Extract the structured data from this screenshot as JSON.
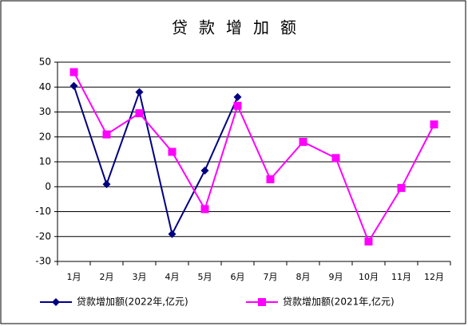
{
  "chart_data": {
    "type": "line",
    "title": "贷款增加额",
    "categories": [
      "1月",
      "2月",
      "3月",
      "4月",
      "5月",
      "6月",
      "7月",
      "8月",
      "9月",
      "10月",
      "11月",
      "12月"
    ],
    "series": [
      {
        "name": "贷款增加额(2022年,亿元)",
        "color": "#000080",
        "marker": "diamond",
        "values": [
          40.5,
          1,
          38,
          -19,
          6.5,
          36,
          null,
          null,
          null,
          null,
          null,
          null
        ]
      },
      {
        "name": "贷款增加额(2021年,亿元)",
        "color": "#ff00ff",
        "marker": "square",
        "values": [
          46,
          21,
          29.5,
          14,
          -9,
          32.5,
          3,
          18,
          11.5,
          -22,
          -0.5,
          25
        ]
      }
    ],
    "ylim": [
      -30,
      50
    ],
    "yticks": [
      -30,
      -20,
      -10,
      0,
      10,
      20,
      30,
      40,
      50
    ],
    "grid": true,
    "legend": "bottom"
  }
}
